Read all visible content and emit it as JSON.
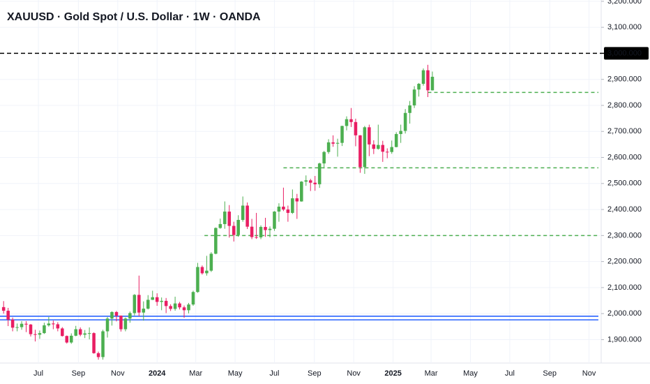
{
  "chart_data": {
    "type": "candlestick",
    "title": "XAUUSD · Gold Spot / U.S. Dollar · 1W · OANDA",
    "up_color": "#4caf50",
    "down_color": "#e91e63",
    "grid": true,
    "x": [
      0,
      1,
      2,
      3,
      4,
      5,
      6,
      7,
      8,
      9,
      10,
      11,
      12,
      13,
      14,
      15,
      16,
      17,
      18,
      19,
      20,
      21,
      22,
      23,
      24,
      25,
      26,
      27,
      28,
      29,
      30,
      31,
      32,
      33,
      34,
      35,
      36,
      37,
      38,
      39,
      40,
      41,
      42,
      43,
      44,
      45,
      46,
      47,
      48,
      49,
      50,
      51,
      52,
      53,
      54,
      55,
      56,
      57,
      58,
      59,
      60,
      61,
      62,
      63,
      64,
      65,
      66,
      67,
      68,
      69,
      70,
      71,
      72,
      73,
      74,
      75,
      76,
      77,
      78,
      79,
      80,
      81,
      82,
      83,
      84,
      85,
      86,
      87,
      88,
      89,
      90,
      91,
      92,
      93,
      94,
      95
    ],
    "open": [
      2025,
      2011,
      1977,
      1946,
      1948,
      1961,
      1958,
      1921,
      1919,
      1925,
      1955,
      1962,
      1959,
      1943,
      1914,
      1889,
      1915,
      1940,
      1919,
      1924,
      1925,
      1848,
      1833,
      1932,
      1981,
      2006,
      1992,
      1940,
      1981,
      2002,
      2072,
      2004,
      2019,
      2053,
      2063,
      2045,
      2049,
      2029,
      2018,
      2039,
      2024,
      2013,
      2035,
      2083,
      2179,
      2155,
      2165,
      2230,
      2329,
      2344,
      2392,
      2337,
      2302,
      2360,
      2415,
      2334,
      2294,
      2293,
      2333,
      2321,
      2326,
      2392,
      2411,
      2400,
      2387,
      2443,
      2431,
      2507,
      2512,
      2503,
      2497,
      2577,
      2621,
      2658,
      2653,
      2656,
      2721,
      2747,
      2736,
      2685,
      2563,
      2716,
      2650,
      2633,
      2648,
      2622,
      2621,
      2640,
      2690,
      2702,
      2771,
      2800,
      2861,
      2883,
      2935,
      2858
    ],
    "high": [
      2048,
      2022,
      1985,
      1962,
      1971,
      1971,
      1960,
      1938,
      1935,
      1965,
      1987,
      1973,
      1967,
      1948,
      1916,
      1924,
      1953,
      1947,
      1937,
      1947,
      1928,
      1854,
      1938,
      1987,
      2009,
      2010,
      1993,
      1985,
      2008,
      2075,
      2146,
      2047,
      2071,
      2088,
      2078,
      2062,
      2060,
      2036,
      2065,
      2045,
      2031,
      2041,
      2088,
      2195,
      2185,
      2222,
      2236,
      2331,
      2365,
      2431,
      2417,
      2353,
      2378,
      2450,
      2427,
      2364,
      2387,
      2339,
      2368,
      2335,
      2394,
      2424,
      2484,
      2415,
      2477,
      2460,
      2509,
      2531,
      2518,
      2529,
      2580,
      2625,
      2670,
      2685,
      2672,
      2722,
      2758,
      2790,
      2749,
      2686,
      2721,
      2726,
      2666,
      2726,
      2664,
      2635,
      2665,
      2697,
      2726,
      2786,
      2817,
      2874,
      2886,
      2942,
      2956,
      2930
    ],
    "low": [
      2000,
      1952,
      1932,
      1932,
      1938,
      1929,
      1912,
      1893,
      1903,
      1922,
      1950,
      1940,
      1932,
      1912,
      1885,
      1884,
      1913,
      1913,
      1906,
      1901,
      1846,
      1823,
      1823,
      1908,
      1954,
      1970,
      1931,
      1932,
      1965,
      1993,
      1990,
      1973,
      2016,
      2052,
      2030,
      2013,
      2002,
      2010,
      2011,
      2016,
      1984,
      2001,
      2030,
      2080,
      2150,
      2146,
      2160,
      2228,
      2326,
      2326,
      2292,
      2277,
      2295,
      2353,
      2325,
      2286,
      2287,
      2286,
      2295,
      2293,
      2318,
      2353,
      2394,
      2353,
      2383,
      2364,
      2430,
      2491,
      2471,
      2472,
      2483,
      2558,
      2614,
      2641,
      2603,
      2644,
      2704,
      2717,
      2643,
      2541,
      2537,
      2605,
      2613,
      2630,
      2583,
      2597,
      2614,
      2639,
      2656,
      2692,
      2730,
      2790,
      2834,
      2876,
      2832,
      2857
    ],
    "close": [
      2011,
      1977,
      1946,
      1948,
      1961,
      1958,
      1921,
      1919,
      1925,
      1955,
      1962,
      1959,
      1943,
      1914,
      1889,
      1915,
      1940,
      1919,
      1924,
      1925,
      1848,
      1833,
      1932,
      1981,
      2006,
      1992,
      1940,
      1981,
      2002,
      2072,
      2004,
      2019,
      2053,
      2063,
      2045,
      2049,
      2029,
      2018,
      2039,
      2024,
      2013,
      2035,
      2083,
      2179,
      2155,
      2165,
      2230,
      2329,
      2344,
      2392,
      2337,
      2302,
      2360,
      2415,
      2334,
      2294,
      2293,
      2333,
      2321,
      2326,
      2392,
      2411,
      2400,
      2387,
      2443,
      2431,
      2507,
      2512,
      2503,
      2497,
      2577,
      2621,
      2658,
      2653,
      2656,
      2721,
      2747,
      2736,
      2685,
      2563,
      2716,
      2650,
      2633,
      2648,
      2622,
      2621,
      2640,
      2690,
      2702,
      2771,
      2800,
      2861,
      2883,
      2935,
      2858,
      2910
    ],
    "xlim": [
      -0.8,
      132.4
    ],
    "ylim": [
      1810,
      3205
    ],
    "xticks": [
      {
        "value": 7.71,
        "label": "Jul"
      },
      {
        "value": 16.57,
        "label": "Sep"
      },
      {
        "value": 25.29,
        "label": "Nov"
      },
      {
        "value": 34.0,
        "label": "2024"
      },
      {
        "value": 42.57,
        "label": "Mar"
      },
      {
        "value": 51.29,
        "label": "May"
      },
      {
        "value": 60.0,
        "label": "Jul"
      },
      {
        "value": 68.86,
        "label": "Sep"
      },
      {
        "value": 77.57,
        "label": "Nov"
      },
      {
        "value": 86.29,
        "label": "2025"
      },
      {
        "value": 94.71,
        "label": "Mar"
      },
      {
        "value": 103.43,
        "label": "May"
      },
      {
        "value": 112.14,
        "label": "Jul"
      },
      {
        "value": 121.0,
        "label": "Sep"
      },
      {
        "value": 129.71,
        "label": "Nov"
      }
    ],
    "yticks": [
      {
        "value": 1900,
        "label": "1,900.000"
      },
      {
        "value": 2000,
        "label": "2,000.000"
      },
      {
        "value": 2100,
        "label": "2,100.000"
      },
      {
        "value": 2200,
        "label": "2,200.000"
      },
      {
        "value": 2300,
        "label": "2,300.000"
      },
      {
        "value": 2400,
        "label": "2,400.000"
      },
      {
        "value": 2500,
        "label": "2,500.000"
      },
      {
        "value": 2600,
        "label": "2,600.000"
      },
      {
        "value": 2700,
        "label": "2,700.000"
      },
      {
        "value": 2800,
        "label": "2,800.000"
      },
      {
        "value": 2900,
        "label": "2,900.000"
      },
      {
        "value": 3100,
        "label": "3,100.000"
      },
      {
        "value": 3200,
        "label": "3,200.000"
      }
    ],
    "hlines": [
      {
        "value": 3000,
        "label": "3,000.000",
        "color": "#000000",
        "dashed": true
      },
      {
        "value": 2850,
        "from": 94,
        "color": "#4caf50",
        "dashed": true
      },
      {
        "value": 2560,
        "from": 62,
        "color": "#4caf50",
        "dashed": true
      },
      {
        "value": 2300,
        "from": 44.5,
        "color": "#4caf50",
        "dashed": true
      },
      {
        "value": 1990,
        "color": "#2962ff",
        "dashed": false
      },
      {
        "value": 1976,
        "color": "#2962ff",
        "dashed": false
      }
    ]
  }
}
